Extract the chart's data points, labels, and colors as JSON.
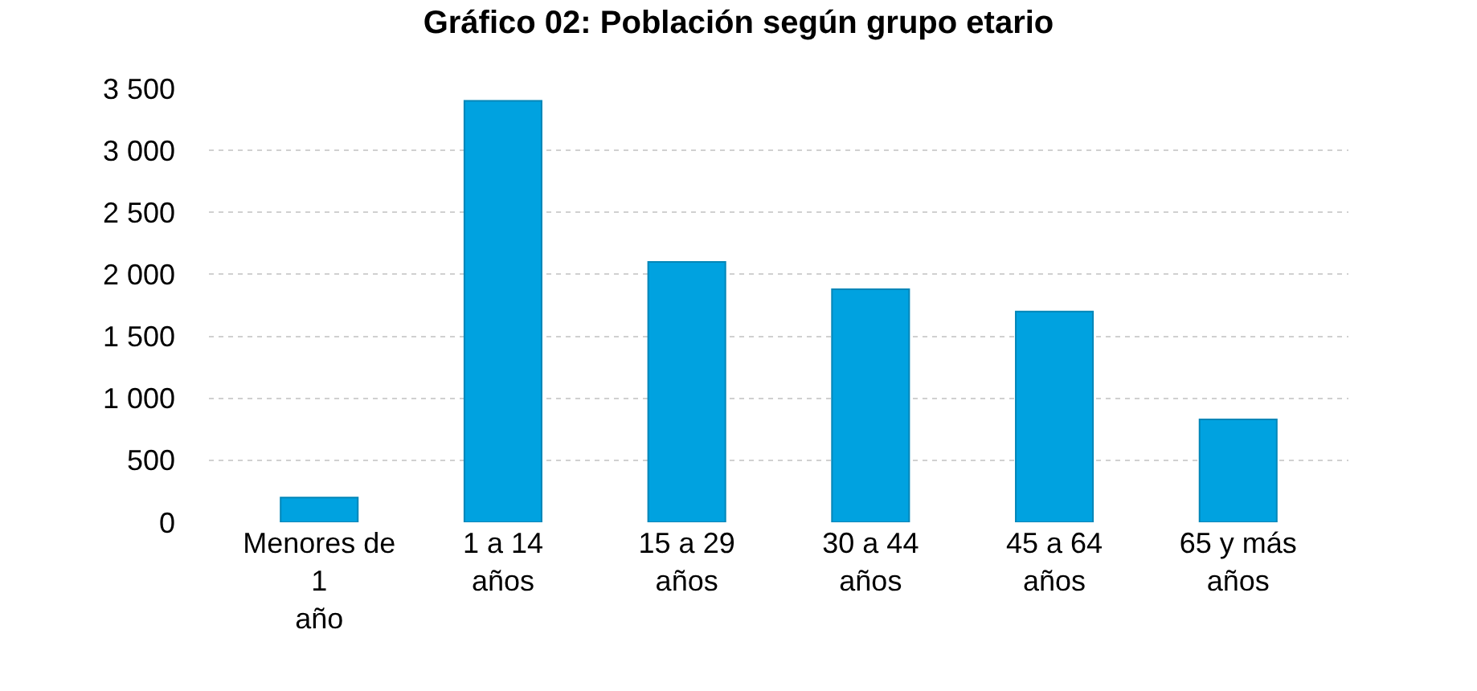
{
  "chart_data": {
    "type": "bar",
    "title": "Gráfico 02: Población según grupo etario",
    "categories": [
      "Menores de\n1\naño",
      "1 a 14\naños",
      "15 a 29\naños",
      "30 a 44\naños",
      "45 a 64\naños",
      "65 y más\naños"
    ],
    "values": [
      200,
      3400,
      2100,
      1880,
      1700,
      830
    ],
    "color": "#00a2e0",
    "ylim": [
      0,
      3500
    ],
    "yticks": [
      {
        "value": 0,
        "label": "0"
      },
      {
        "value": 500,
        "label": "500"
      },
      {
        "value": 1000,
        "label": "1 000"
      },
      {
        "value": 1500,
        "label": "1 500"
      },
      {
        "value": 2000,
        "label": "2 000"
      },
      {
        "value": 2500,
        "label": "2 500"
      },
      {
        "value": 3000,
        "label": "3 000"
      },
      {
        "value": 3500,
        "label": "3 500"
      }
    ],
    "grid": "y"
  }
}
